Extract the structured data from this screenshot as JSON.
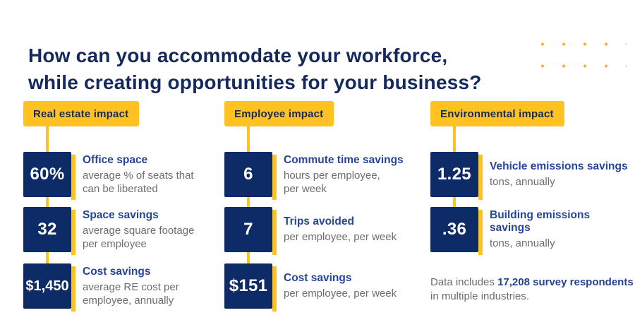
{
  "title": {
    "line1": "How can you accommodate your workforce,",
    "line2": "while creating opportunities for your business?"
  },
  "decor": {
    "dot_grid": "5x3 yellow dots",
    "dot_color": "#f6ae24"
  },
  "colors": {
    "background": "#ffffff",
    "accent_yellow": "#ffc220",
    "tile_navy": "#0d2b66",
    "title_navy": "#15295f",
    "label_blue": "#26449a",
    "body_gray": "#6b6d70"
  },
  "columns": [
    {
      "header": "Real estate impact",
      "items": [
        {
          "value": "60%",
          "label": "Office space",
          "desc": "average % of seats that\ncan be liberated"
        },
        {
          "value": "32",
          "label": "Space savings",
          "desc": "average square footage\nper employee"
        },
        {
          "value": "$1,450",
          "label": "Cost savings",
          "desc": "average RE cost per\nemployee, annually"
        }
      ]
    },
    {
      "header": "Employee impact",
      "items": [
        {
          "value": "6",
          "label": "Commute time savings",
          "desc": "hours per employee,\nper week"
        },
        {
          "value": "7",
          "label": "Trips avoided",
          "desc": "per employee, per week"
        },
        {
          "value": "$151",
          "label": "Cost savings",
          "desc": "per employee, per week"
        }
      ]
    },
    {
      "header": "Environmental impact",
      "items": [
        {
          "value": "1.25",
          "label": "Vehicle emissions savings",
          "desc": "tons, annually"
        },
        {
          "value": ".36",
          "label": "Building emissions savings",
          "desc": "tons, annually"
        }
      ]
    }
  ],
  "footnote": {
    "prefix": "Data includes ",
    "bold": "17,208 survey respondents",
    "line2": "in multiple industries."
  }
}
